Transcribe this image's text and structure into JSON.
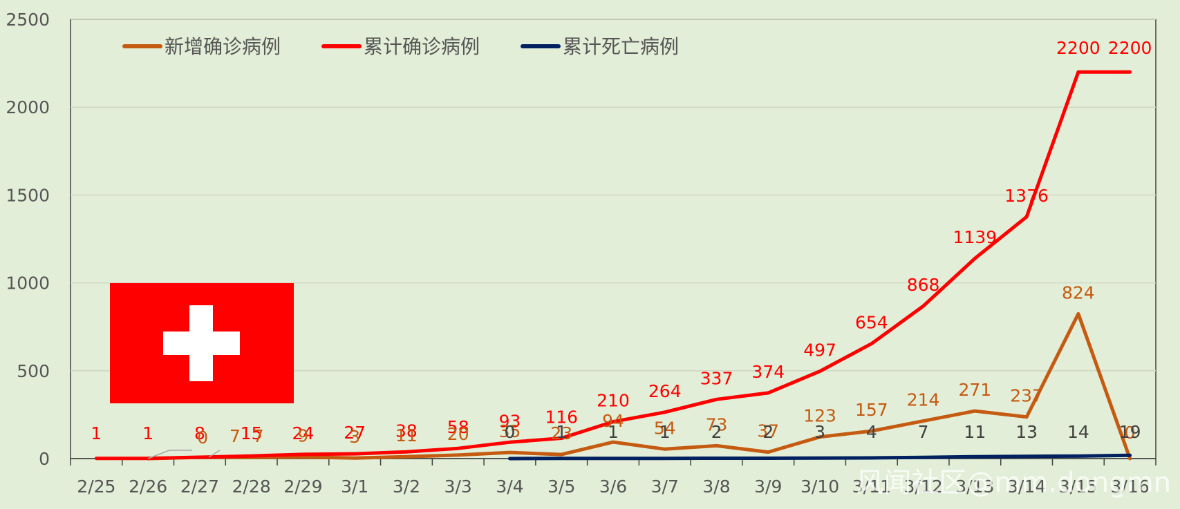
{
  "chart_data": {
    "type": "line",
    "categories": [
      "2/25",
      "2/26",
      "2/27",
      "2/28",
      "2/29",
      "3/1",
      "3/2",
      "3/3",
      "3/4",
      "3/5",
      "3/6",
      "3/7",
      "3/8",
      "3/9",
      "3/10",
      "3/11",
      "3/12",
      "3/13",
      "3/14",
      "3/15",
      "3/16"
    ],
    "ylim": [
      0,
      2500
    ],
    "yticks": [
      0,
      500,
      1000,
      1500,
      2000,
      2500
    ],
    "grid": true,
    "legend_position": "top-left",
    "series": [
      {
        "name": "新增确诊病例",
        "color": "#c55a11",
        "values": [
          null,
          0,
          7,
          7,
          9,
          3,
          11,
          20,
          35,
          23,
          94,
          54,
          73,
          37,
          123,
          157,
          214,
          271,
          237,
          824,
          0
        ],
        "labels": [
          null,
          "0",
          "7",
          "7",
          "9",
          "3",
          "11",
          "20",
          "35",
          "23",
          "94",
          "54",
          "73",
          "37",
          "123",
          "157",
          "214",
          "271",
          "237",
          "824",
          "0"
        ]
      },
      {
        "name": "累计确诊病例",
        "color": "#ff0000",
        "values": [
          1,
          1,
          8,
          15,
          24,
          27,
          38,
          58,
          93,
          116,
          210,
          264,
          337,
          374,
          497,
          654,
          868,
          1139,
          1376,
          2200,
          2200
        ],
        "labels": [
          "1",
          "1",
          "8",
          "15",
          "24",
          "27",
          "38",
          "58",
          "93",
          "116",
          "210",
          "264",
          "337",
          "374",
          "497",
          "654",
          "868",
          "1139",
          "1376",
          "2200",
          "2200"
        ]
      },
      {
        "name": "累计死亡病例",
        "color": "#002060",
        "values": [
          null,
          null,
          null,
          null,
          null,
          null,
          null,
          null,
          0,
          1,
          1,
          1,
          2,
          2,
          3,
          4,
          7,
          11,
          13,
          14,
          19
        ],
        "labels": [
          null,
          null,
          null,
          null,
          null,
          null,
          null,
          null,
          "0",
          "1",
          "1",
          "1",
          "2",
          "2",
          "3",
          "4",
          "7",
          "11",
          "13",
          "14",
          "19"
        ]
      }
    ]
  },
  "watermark": "风闻社区@mm.dongmn",
  "flag": {
    "name": "Switzerland",
    "background": "#ff0000",
    "cross": "#ffffff"
  }
}
